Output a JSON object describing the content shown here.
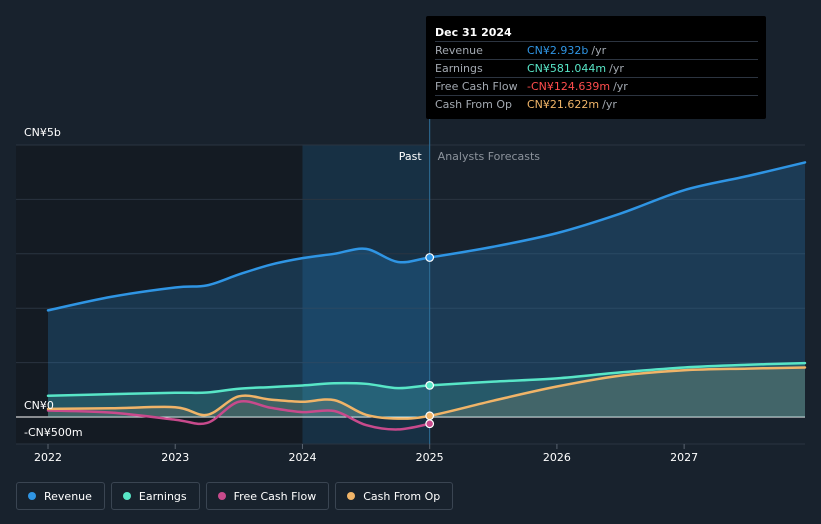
{
  "tooltip": {
    "date": "Dec 31 2024",
    "rows": [
      {
        "label": "Revenue",
        "value": "CN¥2.932b",
        "unit": "/yr",
        "color": "#2f95e4"
      },
      {
        "label": "Earnings",
        "value": "CN¥581.044m",
        "unit": "/yr",
        "color": "#58e6c7"
      },
      {
        "label": "Free Cash Flow",
        "value": "-CN¥124.639m",
        "unit": "/yr",
        "color": "#ff4d4d"
      },
      {
        "label": "Cash From Op",
        "value": "CN¥21.622m",
        "unit": "/yr",
        "color": "#f0b468"
      }
    ]
  },
  "regions": {
    "past": "Past",
    "forecast": "Analysts Forecasts"
  },
  "legend": [
    {
      "label": "Revenue",
      "color": "#2f95e4"
    },
    {
      "label": "Earnings",
      "color": "#58e6c7"
    },
    {
      "label": "Free Cash Flow",
      "color": "#c84a8c"
    },
    {
      "label": "Cash From Op",
      "color": "#f0b468"
    }
  ],
  "chart_data": {
    "type": "line",
    "y_tick_labels": [
      "CN¥5b",
      "CN¥0",
      "-CN¥500m"
    ],
    "x_tick_labels": [
      "2022",
      "2023",
      "2024",
      "2025",
      "2026",
      "2027"
    ],
    "xlim": [
      2022.0,
      2027.95
    ],
    "ylim": [
      -500,
      5000
    ],
    "y_unit": "CN¥ millions",
    "divider_x": 2025.0,
    "highlight_start_x": 2024.0,
    "series": [
      {
        "name": "Revenue",
        "color": "#2f95e4",
        "fill": true,
        "points": [
          [
            2022.0,
            1960
          ],
          [
            2022.5,
            2210
          ],
          [
            2023.0,
            2380
          ],
          [
            2023.25,
            2420
          ],
          [
            2023.5,
            2620
          ],
          [
            2023.75,
            2800
          ],
          [
            2024.0,
            2920
          ],
          [
            2024.25,
            3000
          ],
          [
            2024.5,
            3090
          ],
          [
            2024.75,
            2850
          ],
          [
            2025.0,
            2932
          ],
          [
            2025.5,
            3130
          ],
          [
            2026.0,
            3380
          ],
          [
            2026.5,
            3740
          ],
          [
            2027.0,
            4170
          ],
          [
            2027.5,
            4430
          ],
          [
            2027.95,
            4680
          ]
        ]
      },
      {
        "name": "Earnings",
        "color": "#58e6c7",
        "fill": true,
        "points": [
          [
            2022.0,
            390
          ],
          [
            2022.5,
            420
          ],
          [
            2023.0,
            445
          ],
          [
            2023.25,
            450
          ],
          [
            2023.5,
            520
          ],
          [
            2023.75,
            550
          ],
          [
            2024.0,
            580
          ],
          [
            2024.25,
            620
          ],
          [
            2024.5,
            610
          ],
          [
            2024.75,
            530
          ],
          [
            2025.0,
            581
          ],
          [
            2025.5,
            650
          ],
          [
            2026.0,
            710
          ],
          [
            2026.5,
            820
          ],
          [
            2027.0,
            910
          ],
          [
            2027.5,
            960
          ],
          [
            2027.95,
            990
          ]
        ]
      },
      {
        "name": "Free Cash Flow",
        "color": "#c84a8c",
        "fill": false,
        "points": [
          [
            2022.0,
            120
          ],
          [
            2022.5,
            80
          ],
          [
            2023.0,
            -50
          ],
          [
            2023.25,
            -110
          ],
          [
            2023.5,
            280
          ],
          [
            2023.75,
            170
          ],
          [
            2024.0,
            90
          ],
          [
            2024.25,
            110
          ],
          [
            2024.5,
            -150
          ],
          [
            2024.75,
            -230
          ],
          [
            2025.0,
            -125
          ]
        ]
      },
      {
        "name": "Cash From Op",
        "color": "#f0b468",
        "fill": true,
        "points": [
          [
            2022.0,
            150
          ],
          [
            2022.5,
            160
          ],
          [
            2023.0,
            180
          ],
          [
            2023.25,
            40
          ],
          [
            2023.5,
            380
          ],
          [
            2023.75,
            320
          ],
          [
            2024.0,
            280
          ],
          [
            2024.25,
            310
          ],
          [
            2024.5,
            40
          ],
          [
            2024.75,
            -30
          ],
          [
            2025.0,
            22
          ],
          [
            2025.5,
            300
          ],
          [
            2026.0,
            560
          ],
          [
            2026.5,
            760
          ],
          [
            2027.0,
            860
          ],
          [
            2027.5,
            890
          ],
          [
            2027.95,
            910
          ]
        ]
      }
    ]
  }
}
